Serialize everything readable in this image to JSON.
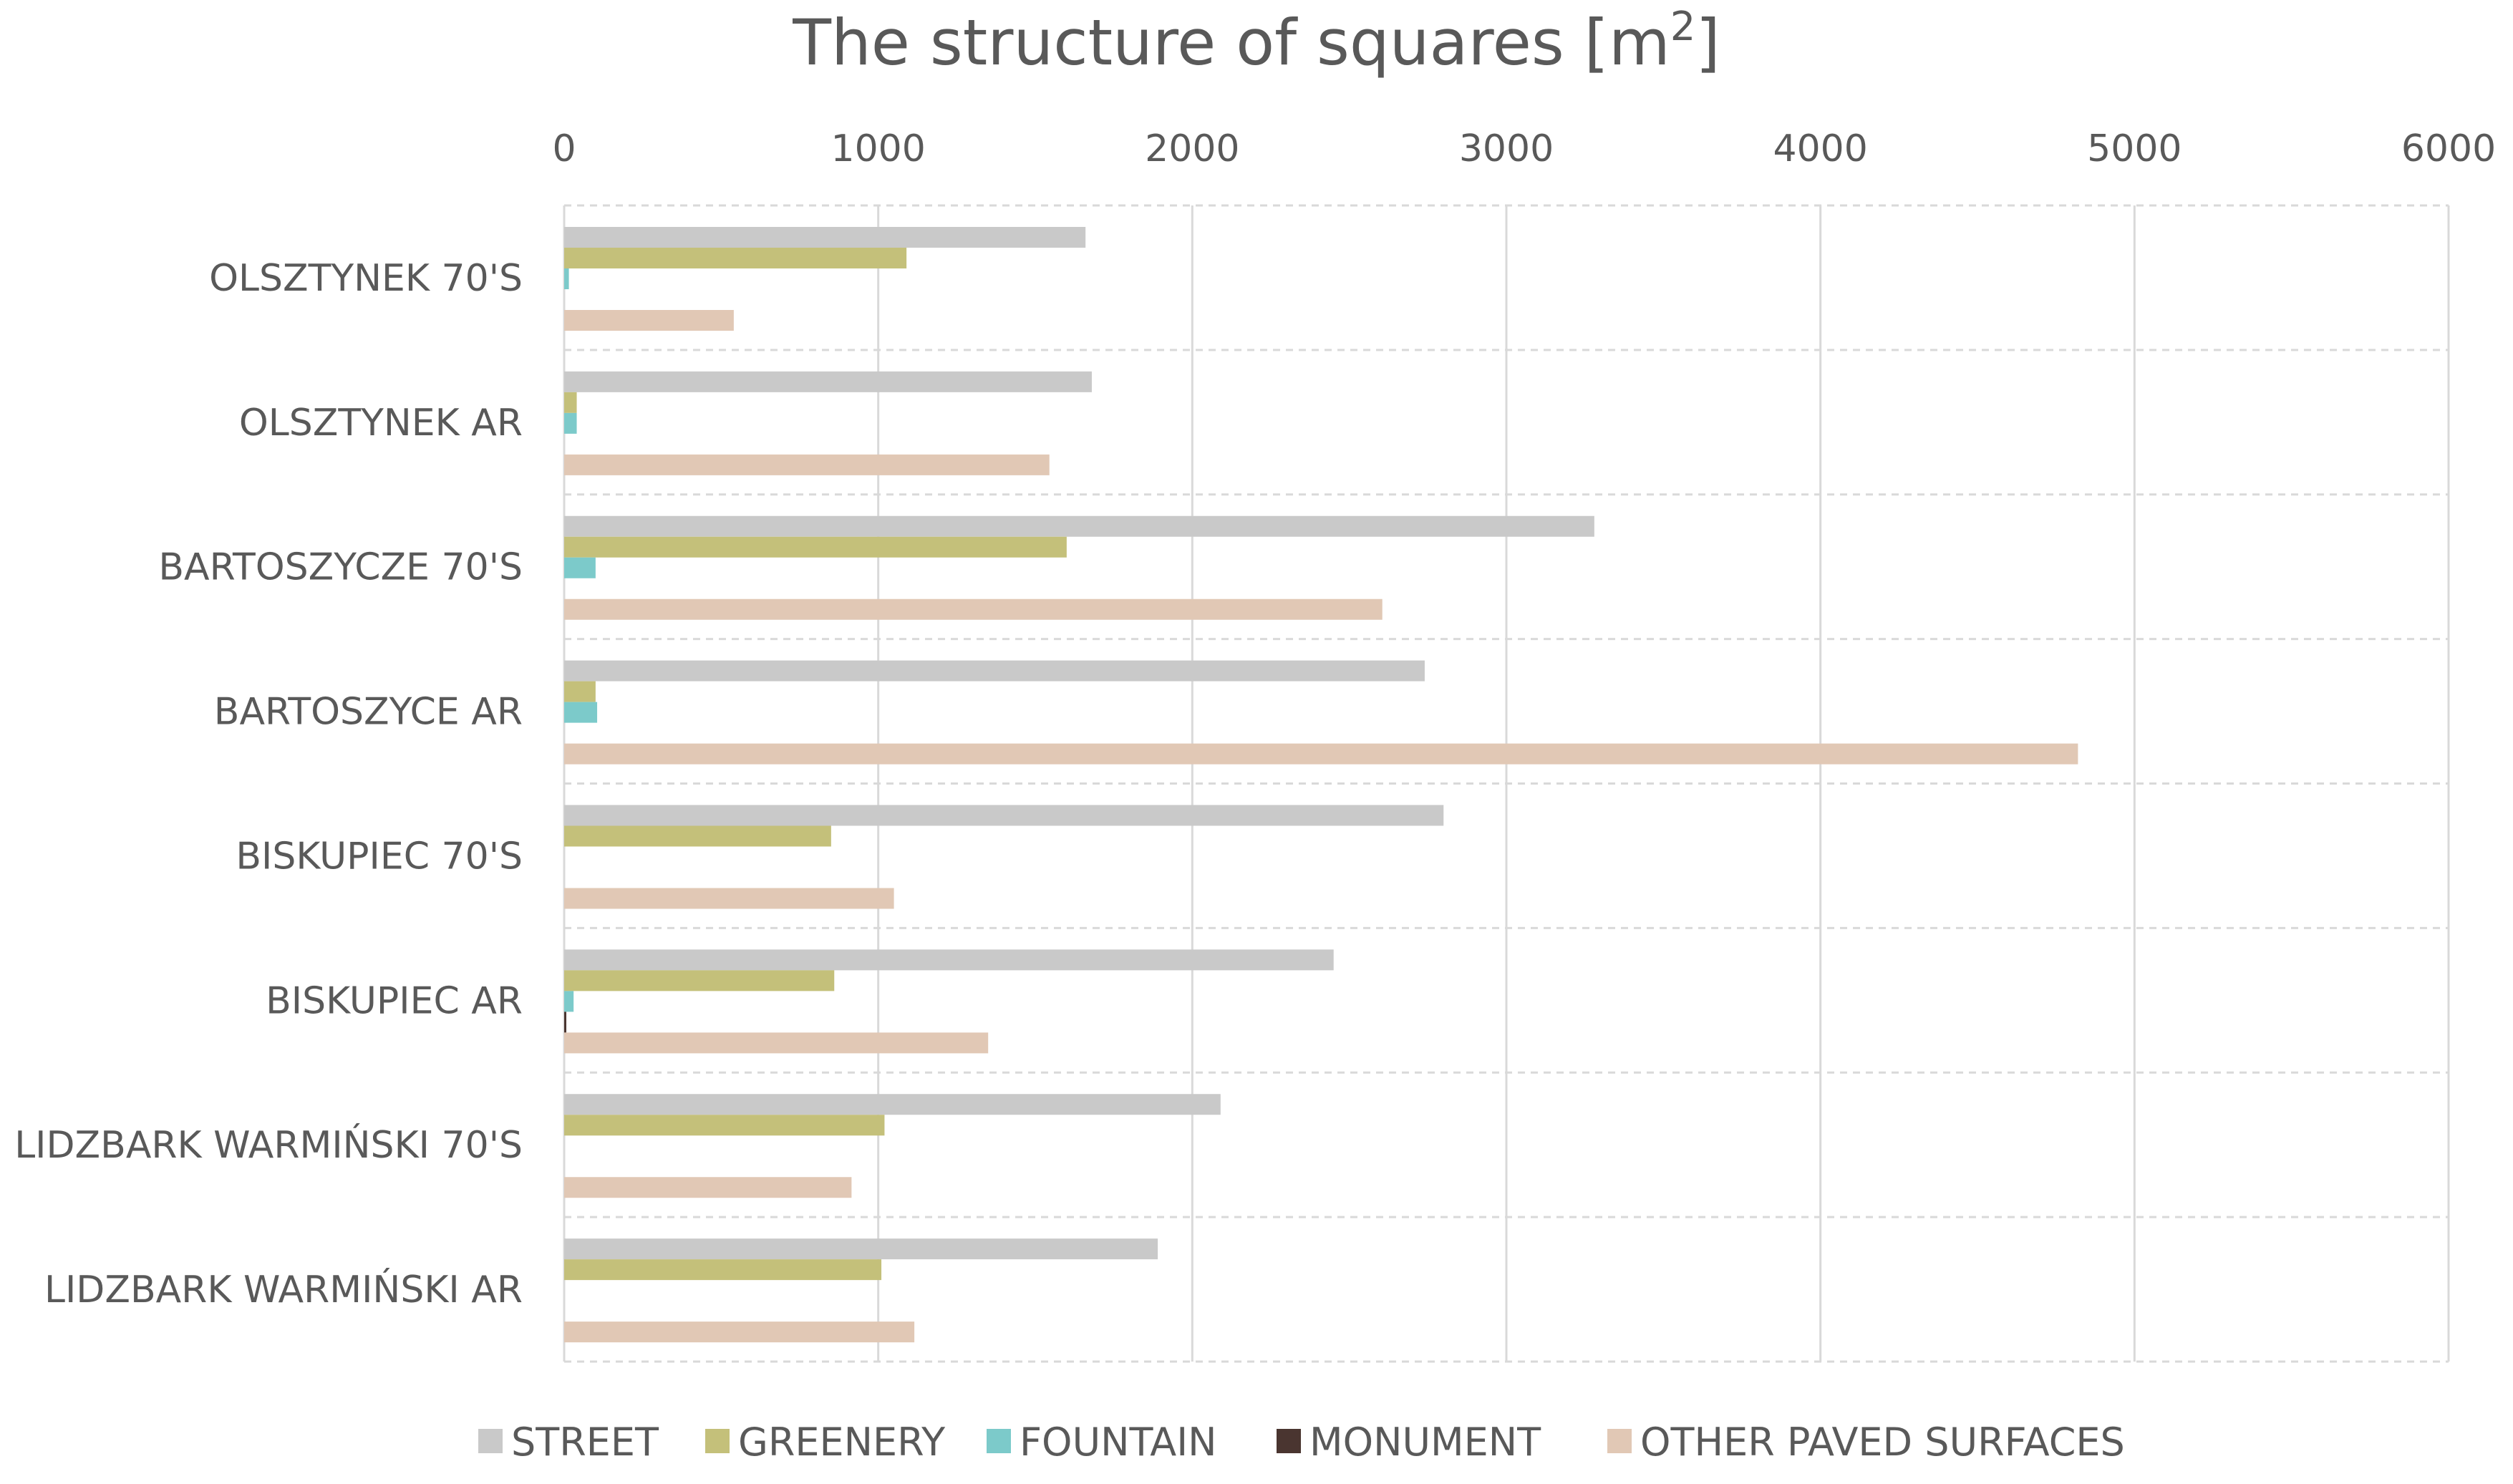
{
  "chart_data": {
    "type": "bar",
    "orientation": "horizontal",
    "title": "The structure of squares [m",
    "title_superscript": "2",
    "title_close": "]",
    "xlabel": "",
    "ylabel": "",
    "xlim": [
      0,
      6000
    ],
    "ticks": [
      "0",
      "1000",
      "2000",
      "3000",
      "4000",
      "5000",
      "6000"
    ],
    "tick_values": [
      0,
      1000,
      2000,
      3000,
      4000,
      5000,
      6000
    ],
    "axis_position": "top",
    "grid": true,
    "legend_position": "bottom",
    "categories": [
      "OLSZTYNEK 70'S",
      "OLSZTYNEK AR",
      "BARTOSZYCZE 70'S",
      "BARTOSZYCE AR",
      "BISKUPIEC 70'S",
      "BISKUPIEC AR",
      "LIDZBARK WARMIŃSKI 70'S",
      "LIDZBARK WARMIŃSKI AR"
    ],
    "series": [
      {
        "name": "STREET",
        "color": "#c9c9c9",
        "values": [
          1660,
          1680,
          3280,
          2740,
          2800,
          2450,
          2090,
          1890
        ]
      },
      {
        "name": "GREENERY",
        "color": "#c4c07a",
        "values": [
          1090,
          40,
          1600,
          100,
          850,
          860,
          1020,
          1010
        ]
      },
      {
        "name": "FOUNTAIN",
        "color": "#7ccaca",
        "values": [
          15,
          40,
          100,
          105,
          0,
          30,
          0,
          0
        ]
      },
      {
        "name": "MONUMENT",
        "color": "#4a3530",
        "values": [
          0,
          0,
          0,
          0,
          0,
          5,
          0,
          0
        ]
      },
      {
        "name": "OTHER PAVED SURFACES",
        "color": "#e1c8b5",
        "values": [
          540,
          1545,
          2605,
          4820,
          1050,
          1350,
          915,
          1115
        ]
      }
    ]
  },
  "colors": {
    "text": "#595959",
    "grid": "#d9d9d9",
    "category_divider": "#d9d9d9"
  }
}
